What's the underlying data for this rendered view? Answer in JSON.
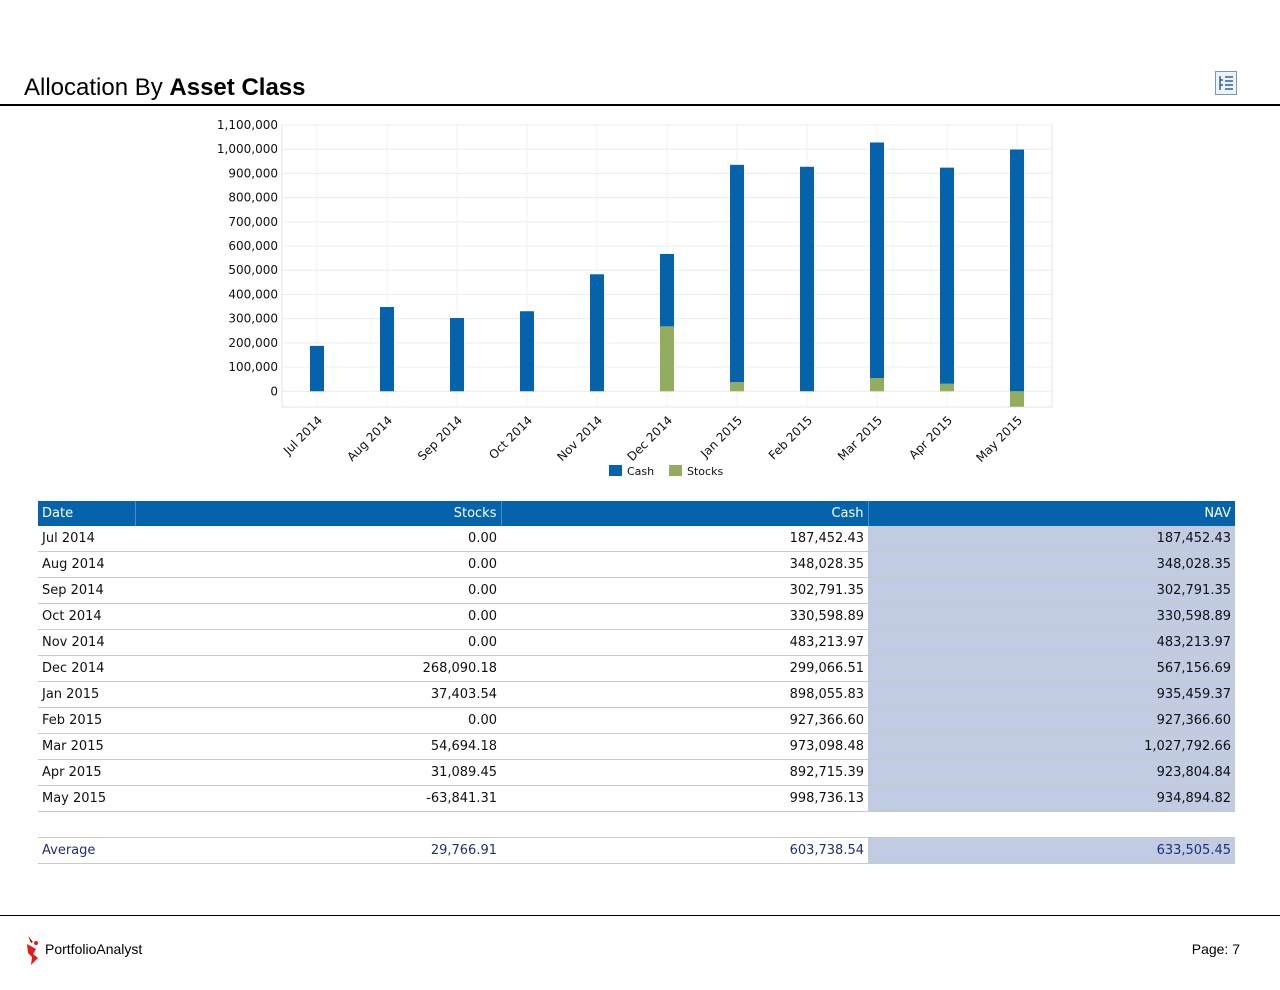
{
  "header": {
    "title_prefix": "Allocation By ",
    "title_bold": "Asset Class"
  },
  "colors": {
    "cash": "#0463ab",
    "stocks": "#93ad5f",
    "header_bg": "#0463ab",
    "nav_col_bg": "#c1cbe2",
    "average_text": "#1f2f7a"
  },
  "icons": {
    "report_icon": "report-list-icon",
    "brand_logo": "portfolioanalyst-logo-icon"
  },
  "chart_data": {
    "type": "bar",
    "stacked": true,
    "categories": [
      "Jul 2014",
      "Aug 2014",
      "Sep 2014",
      "Oct 2014",
      "Nov 2014",
      "Dec 2014",
      "Jan 2015",
      "Feb 2015",
      "Mar 2015",
      "Apr 2015",
      "May 2015"
    ],
    "series": [
      {
        "name": "Cash",
        "color": "#0463ab",
        "values": [
          187452.43,
          348028.35,
          302791.35,
          330598.89,
          483213.97,
          299066.51,
          898055.83,
          927366.6,
          973098.48,
          892715.39,
          998736.13
        ]
      },
      {
        "name": "Stocks",
        "color": "#93ad5f",
        "values": [
          0,
          0,
          0,
          0,
          0,
          268090.18,
          37403.54,
          0,
          54694.18,
          31089.45,
          -63841.31
        ]
      }
    ],
    "ylim": [
      -65000,
      1100000
    ],
    "yticks": [
      0,
      100000,
      200000,
      300000,
      400000,
      500000,
      600000,
      700000,
      800000,
      900000,
      1000000,
      1100000
    ],
    "ytick_labels": [
      "0",
      "100,000",
      "200,000",
      "300,000",
      "400,000",
      "500,000",
      "600,000",
      "700,000",
      "800,000",
      "900,000",
      "1,000,000",
      "1,100,000"
    ],
    "grid": true,
    "legend": [
      "Cash",
      "Stocks"
    ],
    "legend_position": "bottom"
  },
  "table": {
    "headers": [
      "Date",
      "Stocks",
      "Cash",
      "NAV"
    ],
    "rows": [
      [
        "Jul 2014",
        "0.00",
        "187,452.43",
        "187,452.43"
      ],
      [
        "Aug 2014",
        "0.00",
        "348,028.35",
        "348,028.35"
      ],
      [
        "Sep 2014",
        "0.00",
        "302,791.35",
        "302,791.35"
      ],
      [
        "Oct 2014",
        "0.00",
        "330,598.89",
        "330,598.89"
      ],
      [
        "Nov 2014",
        "0.00",
        "483,213.97",
        "483,213.97"
      ],
      [
        "Dec 2014",
        "268,090.18",
        "299,066.51",
        "567,156.69"
      ],
      [
        "Jan 2015",
        "37,403.54",
        "898,055.83",
        "935,459.37"
      ],
      [
        "Feb 2015",
        "0.00",
        "927,366.60",
        "927,366.60"
      ],
      [
        "Mar 2015",
        "54,694.18",
        "973,098.48",
        "1,027,792.66"
      ],
      [
        "Apr 2015",
        "31,089.45",
        "892,715.39",
        "923,804.84"
      ],
      [
        "May 2015",
        "-63,841.31",
        "998,736.13",
        "934,894.82"
      ]
    ],
    "average": [
      "Average",
      "29,766.91",
      "603,738.54",
      "633,505.45"
    ]
  },
  "footer": {
    "brand": "PortfolioAnalyst",
    "page": "Page: 7"
  }
}
